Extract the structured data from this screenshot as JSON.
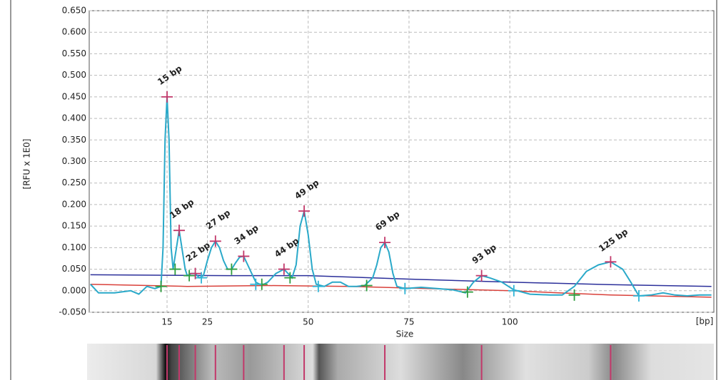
{
  "chart_data": {
    "type": "line",
    "y_label": "[RFU x 1E0]",
    "x_label": "Size",
    "x_unit": "[bp]",
    "xlim": [
      -4.3,
      150.6
    ],
    "xticks": [
      15,
      25,
      50,
      75,
      100
    ],
    "ylim": [
      -0.05,
      0.65
    ],
    "yticks": [
      {
        "value": -0.05,
        "label": "-0.050"
      },
      {
        "value": 0,
        "label": "0.000"
      },
      {
        "value": 0.05,
        "label": "0.050"
      },
      {
        "value": 0.1,
        "label": "0.100"
      },
      {
        "value": 0.15,
        "label": "0.150"
      },
      {
        "value": 0.2,
        "label": "0.200"
      },
      {
        "value": 0.25,
        "label": "0.250"
      },
      {
        "value": 0.3,
        "label": "0.300"
      },
      {
        "value": 0.35,
        "label": "0.350"
      },
      {
        "value": 0.4,
        "label": "0.400"
      },
      {
        "value": 0.45,
        "label": "0.450"
      },
      {
        "value": 0.5,
        "label": "0.500"
      },
      {
        "value": 0.55,
        "label": "0.550"
      },
      {
        "value": 0.6,
        "label": "0.600"
      },
      {
        "value": 0.65,
        "label": "0.650"
      }
    ],
    "grid": true,
    "series": [
      {
        "color": "#2aa9c9",
        "x": [
          -4,
          -2,
          2,
          6,
          8,
          10,
          12,
          13.5,
          14,
          14.5,
          15,
          15.5,
          16,
          16.5,
          17,
          18,
          19,
          19.5,
          20,
          21,
          22,
          23,
          24,
          25,
          26,
          27,
          28,
          29,
          30,
          31,
          32,
          33,
          34,
          35,
          36,
          37,
          38,
          39,
          40,
          42,
          44,
          45,
          46,
          47,
          48,
          49,
          50,
          51,
          52,
          54,
          56,
          58,
          60,
          62,
          64,
          66,
          67,
          68,
          69,
          70,
          71,
          72,
          74,
          78,
          82,
          86,
          89,
          91,
          93,
          95,
          98,
          101,
          105,
          110,
          113,
          116,
          119,
          122,
          125,
          128,
          130,
          132,
          135,
          138,
          141,
          144,
          147,
          150
        ],
        "values": [
          0.015,
          -0.005,
          -0.005,
          0,
          -0.008,
          0.01,
          0.005,
          0.01,
          0.1,
          0.35,
          0.45,
          0.35,
          0.1,
          0.05,
          0.08,
          0.14,
          0.08,
          0.05,
          0.035,
          0.04,
          0.04,
          0.03,
          0.035,
          0.07,
          0.1,
          0.115,
          0.1,
          0.07,
          0.05,
          0.05,
          0.065,
          0.078,
          0.08,
          0.06,
          0.04,
          0.02,
          0.015,
          0.015,
          0.02,
          0.04,
          0.05,
          0.04,
          0.03,
          0.06,
          0.15,
          0.185,
          0.13,
          0.05,
          0.015,
          0.01,
          0.02,
          0.02,
          0.01,
          0.01,
          0.012,
          0.03,
          0.06,
          0.1,
          0.112,
          0.09,
          0.04,
          0.01,
          0.005,
          0.008,
          0.005,
          0.002,
          -0.005,
          0.02,
          0.035,
          0.03,
          0.02,
          0.002,
          -0.008,
          -0.01,
          -0.01,
          0.01,
          0.045,
          0.06,
          0.067,
          0.05,
          0.02,
          -0.012,
          -0.01,
          -0.005,
          -0.01,
          -0.012,
          -0.01,
          -0.01
        ]
      },
      {
        "color": "#2b2f9a",
        "x": [
          -4,
          30,
          50,
          75,
          100,
          125,
          150
        ],
        "values": [
          0.037,
          0.035,
          0.035,
          0.027,
          0.02,
          0.014,
          0.01
        ]
      },
      {
        "color": "#d9403a",
        "x": [
          -4,
          20,
          40,
          60,
          100,
          125,
          150
        ],
        "values": [
          0.015,
          0.01,
          0.012,
          0.01,
          0,
          -0.01,
          -0.015
        ]
      }
    ],
    "peaks": [
      {
        "x": 15,
        "y": 0.45,
        "label": "15 bp"
      },
      {
        "x": 18,
        "y": 0.14,
        "label": "18 bp"
      },
      {
        "x": 22,
        "y": 0.04,
        "label": "22 bp"
      },
      {
        "x": 27,
        "y": 0.115,
        "label": "27 bp"
      },
      {
        "x": 34,
        "y": 0.08,
        "label": "34 bp"
      },
      {
        "x": 44,
        "y": 0.05,
        "label": "44 bp"
      },
      {
        "x": 49,
        "y": 0.185,
        "label": "49 bp"
      },
      {
        "x": 69,
        "y": 0.112,
        "label": "69 bp"
      },
      {
        "x": 93,
        "y": 0.035,
        "label": "93 bp"
      },
      {
        "x": 125,
        "y": 0.067,
        "label": "125 bp"
      }
    ],
    "peak_color": "#c2386a",
    "markers": [
      {
        "color": "#2e9e3e",
        "x": [
          13.5,
          17,
          20.5,
          31,
          38.5,
          45.5,
          64.5,
          89.5,
          116
        ],
        "values": [
          0.01,
          0.05,
          0.035,
          0.05,
          0.015,
          0.03,
          0.012,
          -0.003,
          -0.01
        ]
      },
      {
        "color": "#2fb4d6",
        "x": [
          23.5,
          37,
          52.5,
          74,
          101,
          132
        ],
        "values": [
          0.03,
          0.015,
          0.01,
          0.005,
          0,
          -0.012
        ]
      }
    ]
  }
}
